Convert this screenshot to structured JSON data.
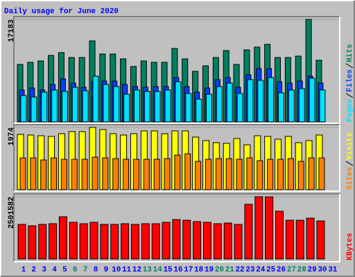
{
  "chart_data": [
    {
      "type": "bar",
      "title": "Daily usage for June 2020",
      "categories": [
        "1",
        "2",
        "3",
        "4",
        "5",
        "6",
        "7",
        "8",
        "9",
        "10",
        "11",
        "12",
        "13",
        "14",
        "15",
        "16",
        "17",
        "18",
        "19",
        "20",
        "21",
        "22",
        "23",
        "24",
        "25",
        "26",
        "27",
        "28",
        "29",
        "30",
        "31"
      ],
      "ylim": [
        0,
        17183
      ],
      "yticks": [
        17183
      ],
      "series": [
        {
          "name": "Hits",
          "color": "#008060",
          "values": [
            9636,
            9985,
            10217,
            11146,
            11610,
            10797,
            10797,
            13584,
            11378,
            11378,
            10565,
            9288,
            10217,
            9985,
            9985,
            12307,
            10565,
            8475,
            9404,
            10797,
            11958,
            9636,
            12074,
            12539,
            13003,
            10797,
            10797,
            11030,
            17183,
            10333,
            null
          ]
        },
        {
          "name": "Files",
          "color": "#0040ff",
          "values": [
            5341,
            5689,
            5341,
            6269,
            7198,
            6502,
            5805,
            6734,
            6850,
            6850,
            6269,
            5921,
            5805,
            5921,
            5921,
            7430,
            5921,
            4992,
            5689,
            7082,
            7430,
            5805,
            7895,
            8940,
            8940,
            6734,
            6502,
            6850,
            7663,
            6502,
            null
          ]
        },
        {
          "name": "Pages",
          "color": "#00e0ff",
          "values": [
            4412,
            4180,
            4992,
            5341,
            5108,
            5805,
            5225,
            7663,
            6269,
            5921,
            4644,
            5341,
            5108,
            5108,
            5341,
            6734,
            4760,
            3831,
            4644,
            5921,
            6502,
            4760,
            7082,
            6966,
            7430,
            4876,
            5341,
            5573,
            7314,
            5341,
            null
          ]
        }
      ]
    },
    {
      "type": "bar",
      "categories": [
        "1",
        "2",
        "3",
        "4",
        "5",
        "6",
        "7",
        "8",
        "9",
        "10",
        "11",
        "12",
        "13",
        "14",
        "15",
        "16",
        "17",
        "18",
        "19",
        "20",
        "21",
        "22",
        "23",
        "24",
        "25",
        "26",
        "27",
        "28",
        "29",
        "30",
        "31"
      ],
      "ylim": [
        0,
        1974
      ],
      "yticks": [
        1974
      ],
      "series": [
        {
          "name": "Visits",
          "color": "#ffff00",
          "values": [
            1754,
            1733,
            1711,
            1689,
            1776,
            1842,
            1842,
            1974,
            1908,
            1776,
            1733,
            1776,
            1864,
            1864,
            1776,
            1864,
            1864,
            1667,
            1557,
            1491,
            1469,
            1623,
            1425,
            1711,
            1689,
            1601,
            1689,
            1491,
            1557,
            1733,
            null
          ]
        },
        {
          "name": "Sites",
          "color": "#ff8000",
          "values": [
            1009,
            1009,
            943,
            1009,
            965,
            965,
            965,
            1031,
            1009,
            987,
            965,
            965,
            965,
            965,
            987,
            1097,
            1140,
            899,
            965,
            987,
            987,
            965,
            1009,
            921,
            965,
            965,
            987,
            899,
            1009,
            1009,
            null
          ]
        }
      ]
    },
    {
      "type": "bar",
      "categories": [
        "1",
        "2",
        "3",
        "4",
        "5",
        "6",
        "7",
        "8",
        "9",
        "10",
        "11",
        "12",
        "13",
        "14",
        "15",
        "16",
        "17",
        "18",
        "19",
        "20",
        "21",
        "22",
        "23",
        "24",
        "25",
        "26",
        "27",
        "28",
        "29",
        "30",
        "31"
      ],
      "category_colors": [
        "#0000ff",
        "#0000ff",
        "#0000ff",
        "#0000ff",
        "#0000ff",
        "#008060",
        "#008060",
        "#0000ff",
        "#0000ff",
        "#0000ff",
        "#0000ff",
        "#0000ff",
        "#008060",
        "#008060",
        "#0000ff",
        "#0000ff",
        "#0000ff",
        "#0000ff",
        "#0000ff",
        "#008060",
        "#008060",
        "#0000ff",
        "#0000ff",
        "#0000ff",
        "#0000ff",
        "#0000ff",
        "#008060",
        "#008060",
        "#0000ff",
        "#0000ff",
        "#0000ff"
      ],
      "ylim": [
        0,
        2501582
      ],
      "yticks": [
        2501582
      ],
      "series": [
        {
          "name": "KBytes",
          "color": "#ff0000",
          "values": [
            1389750,
            1334160,
            1389750,
            1417545,
            1695495,
            1473135,
            1417545,
            1473135,
            1389750,
            1389750,
            1417545,
            1389750,
            1417545,
            1417545,
            1473135,
            1584315,
            1556520,
            1500930,
            1473135,
            1417545,
            1445340,
            1389750,
            2195805,
            2501582,
            2495000,
            1917855,
            1556520,
            1556520,
            1639905,
            1528725,
            null
          ]
        }
      ]
    }
  ]
}
